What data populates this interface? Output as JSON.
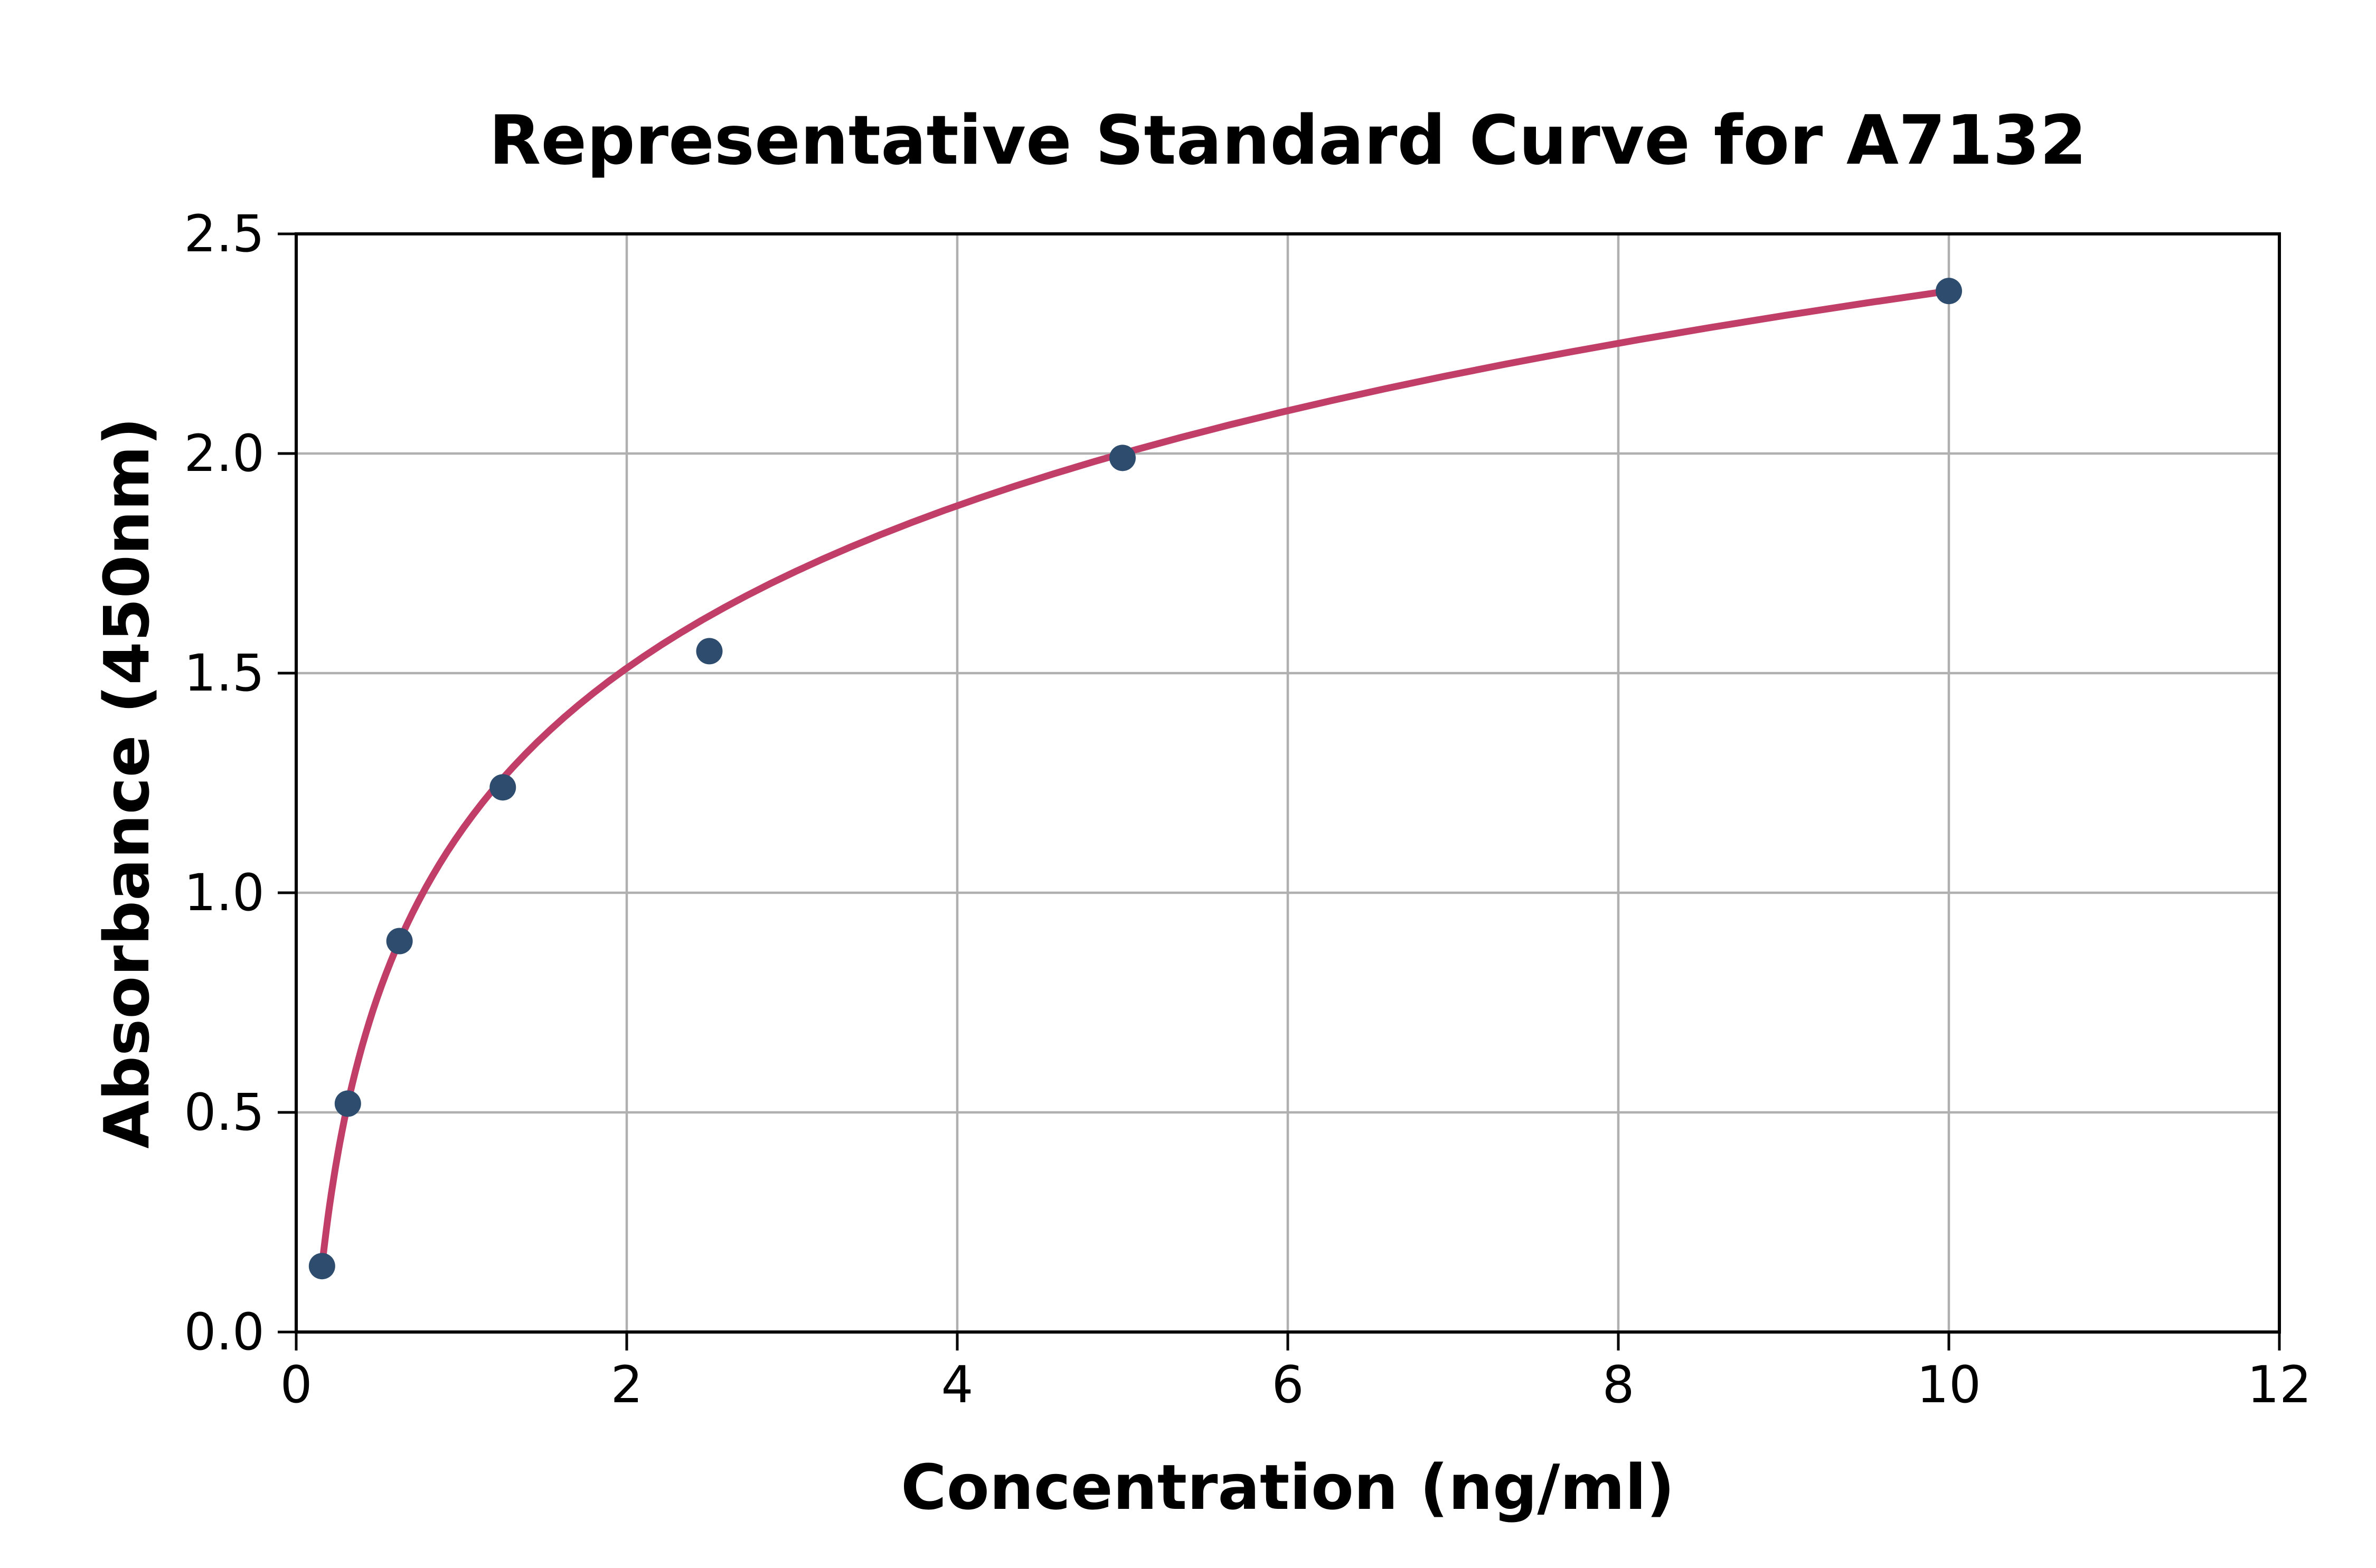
{
  "chart_data": {
    "type": "scatter",
    "title": "Representative Standard Curve for A7132",
    "xlabel": "Concentration (ng/ml)",
    "ylabel": "Absorbance (450nm)",
    "xlim": [
      0,
      12
    ],
    "ylim": [
      0,
      2.5
    ],
    "x_ticks": [
      0,
      2,
      4,
      6,
      8,
      10,
      12
    ],
    "x_tick_labels": [
      "0",
      "2",
      "4",
      "6",
      "8",
      "10",
      "12"
    ],
    "y_ticks": [
      0,
      0.5,
      1,
      1.5,
      2,
      2.5
    ],
    "y_tick_labels": [
      "0.0",
      "0.5",
      "1.0",
      "1.5",
      "2.0",
      "2.5"
    ],
    "grid": true,
    "legend_position": "none",
    "series": [
      {
        "name": "standards",
        "type": "scatter",
        "x": [
          0.156,
          0.3125,
          0.625,
          1.25,
          2.5,
          5,
          10
        ],
        "y": [
          0.15,
          0.52,
          0.89,
          1.24,
          1.55,
          1.99,
          2.37
        ],
        "color": "#2e4d6e"
      },
      {
        "name": "fit-curve",
        "type": "line",
        "fit_model": "y = a + b*ln(x)",
        "a": 1.1414,
        "b": 0.5336,
        "x_range": [
          0.156,
          10
        ],
        "color": "#c13e69"
      }
    ],
    "colors": {
      "background": "#ffffff",
      "grid": "#b0b0b0",
      "axis": "#000000",
      "text": "#000000",
      "marker": "#2e4d6e",
      "curve": "#c13e69"
    }
  }
}
